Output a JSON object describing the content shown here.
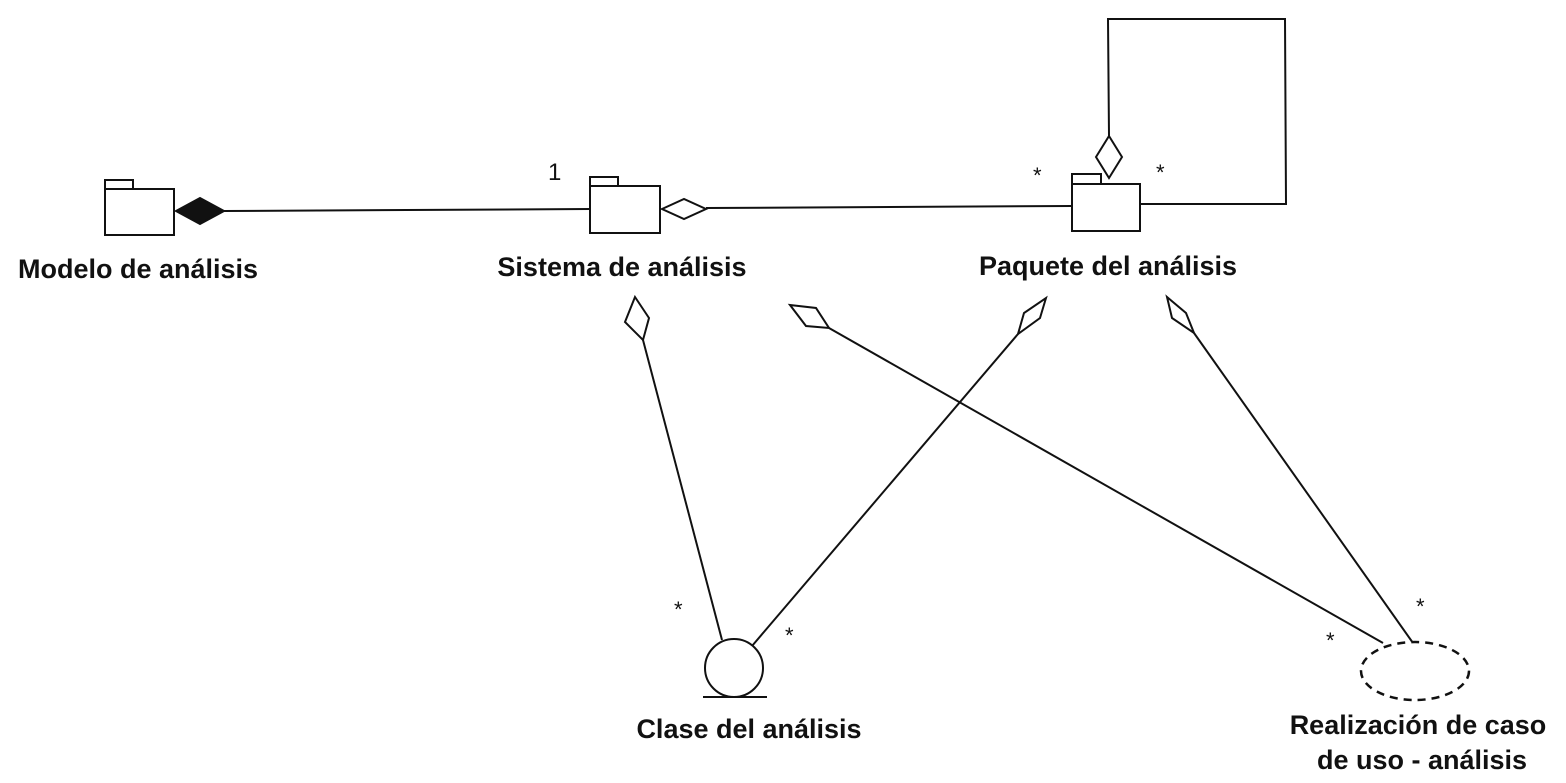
{
  "nodes": {
    "modelo": {
      "label": "Modelo de análisis"
    },
    "sistema": {
      "label": "Sistema de análisis"
    },
    "paquete": {
      "label": "Paquete del análisis"
    },
    "clase": {
      "label": "Clase del análisis"
    },
    "realizacion": {
      "label_line1": "Realización de caso",
      "label_line2": "de uso - análisis"
    }
  },
  "multiplicities": {
    "sistema_one": "1",
    "paquete_left": "*",
    "paquete_right": "*",
    "clase_left": "*",
    "clase_right": "*",
    "realizacion_left": "*",
    "realizacion_top": "*"
  },
  "edges": [
    {
      "from": "modelo",
      "to": "sistema",
      "end": "composition"
    },
    {
      "from": "sistema",
      "to": "paquete",
      "end": "aggregation"
    },
    {
      "from": "paquete",
      "to": "paquete",
      "end": "aggregation"
    },
    {
      "from": "sistema",
      "to": "clase",
      "end": "aggregation"
    },
    {
      "from": "sistema",
      "to": "realizacion",
      "end": "aggregation"
    },
    {
      "from": "paquete",
      "to": "clase",
      "end": "aggregation"
    },
    {
      "from": "paquete",
      "to": "realizacion",
      "end": "aggregation"
    }
  ]
}
